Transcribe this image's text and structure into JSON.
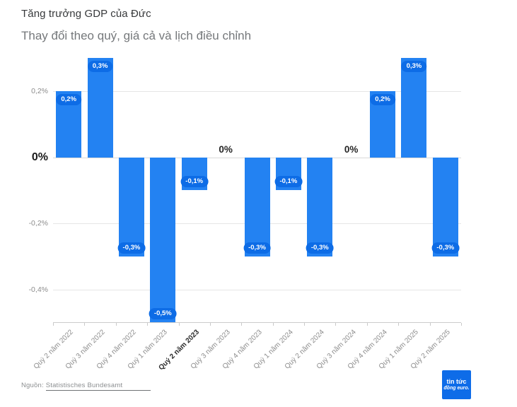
{
  "header": {
    "title": "Tăng trưởng GDP của Đức",
    "subtitle": "Thay đổi theo quý, giá cả và lịch điều chỉnh"
  },
  "footer": {
    "source_prefix": "Nguồn:",
    "source_link": "Statistisches Bundesamt",
    "logo_line1": "tin tức",
    "logo_line2": "đồng euro."
  },
  "colors": {
    "bar": "#2382f2",
    "value_pill": "#0d6ce6",
    "logo_bg": "#0e6ce8",
    "grid": "#e6e6e6",
    "axis_text": "#8c8c8c",
    "strong_text": "#1a1a1a"
  },
  "chart_data": {
    "type": "bar",
    "title": "Tăng trưởng GDP của Đức",
    "subtitle": "Thay đổi theo quý, giá cả và lịch điều chỉnh",
    "xlabel": "",
    "ylabel": "",
    "unit": "%",
    "categories": [
      "Quý 2 năm 2022",
      "Quý 3 năm 2022",
      "Quý 4 năm 2022",
      "Quý 1 năm 2023",
      "Quý 2 năm 2023",
      "Quý 3 năm 2023",
      "Quý 4 năm 2023",
      "Quý 1 năm 2024",
      "Quý 2 năm 2024",
      "Quý 3 năm 2024",
      "Quý 4 năm 2024",
      "Quý 1 năm 2025",
      "Quý 2 năm 2025"
    ],
    "values": [
      0.2,
      0.3,
      -0.3,
      -0.5,
      -0.1,
      0,
      -0.3,
      -0.1,
      -0.3,
      0,
      0.2,
      0.3,
      -0.3
    ],
    "value_labels": [
      "0,2%",
      "0,3%",
      "-0,3%",
      "-0,5%",
      "-0,1%",
      "0%",
      "-0,3%",
      "-0,1%",
      "-0,3%",
      "0%",
      "0,2%",
      "0,3%",
      "-0,3%"
    ],
    "y_ticks": [
      {
        "value": 0.2,
        "label": "0,2%",
        "emphasis": false
      },
      {
        "value": 0,
        "label": "0%",
        "emphasis": true
      },
      {
        "value": -0.2,
        "label": "-0,2%",
        "emphasis": false
      },
      {
        "value": -0.4,
        "label": "-0,4%",
        "emphasis": false
      }
    ],
    "ylim": [
      -0.5,
      0.3
    ],
    "grid": true,
    "legend_position": "none",
    "highlighted_category": "Quý 2 năm 2023"
  }
}
